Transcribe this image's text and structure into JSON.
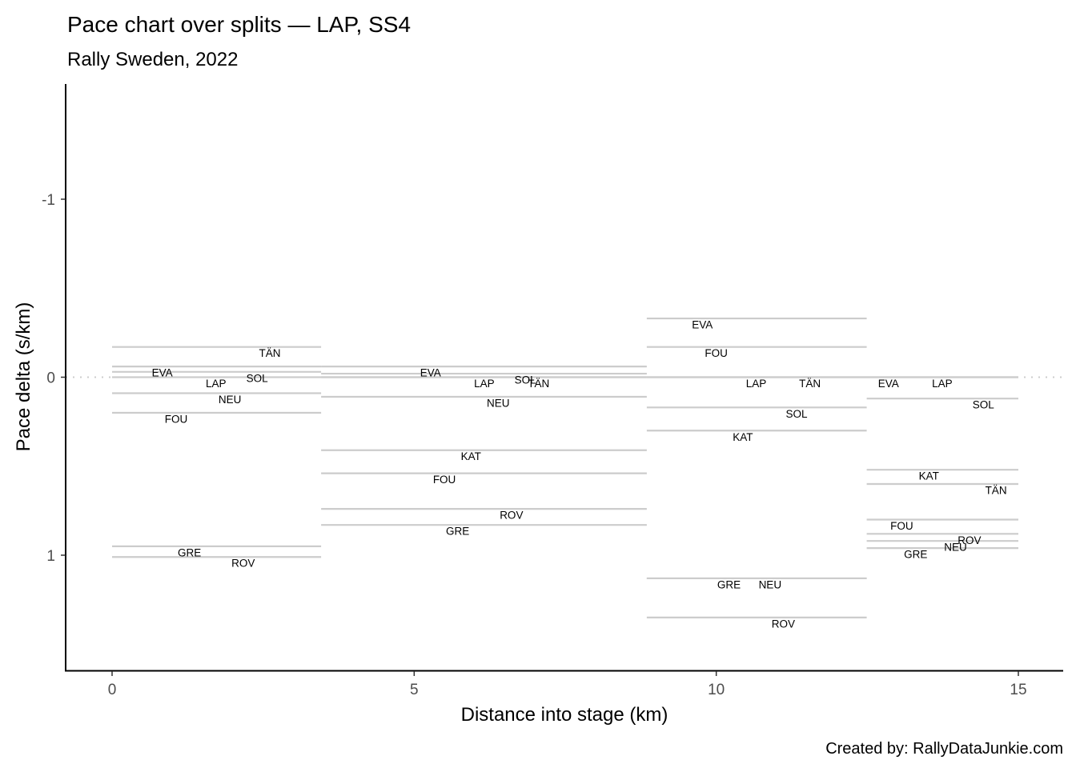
{
  "chart_data": {
    "type": "segment",
    "title": "Pace chart over splits — LAP, SS4",
    "subtitle": "Rally Sweden, 2022",
    "xlabel": "Distance into stage (km)",
    "ylabel": "Pace delta (s/km)",
    "caption": "Created by: RallyDataJunkie.com",
    "xlim": [
      0,
      15
    ],
    "ylim": [
      -1,
      1
    ],
    "y_reversed": true,
    "xticks": [
      0,
      5,
      10,
      15
    ],
    "xtick_labels": [
      "0",
      "5",
      "10",
      "15"
    ],
    "yticks": [
      -1,
      0,
      1
    ],
    "ytick_labels": [
      "-1",
      "0",
      "1"
    ],
    "reference_line": 0,
    "colors": {
      "segment": "#cccccc",
      "reference": "#cccccc",
      "text": "#000000"
    },
    "splits": [
      {
        "start": 0,
        "end": 3.46,
        "drivers": [
          {
            "code": "TÄN",
            "pace": -0.17,
            "label_x": 2.61
          },
          {
            "code": "EVA",
            "pace": -0.06,
            "label_x": 0.83
          },
          {
            "code": "SOL",
            "pace": -0.03,
            "label_x": 2.4
          },
          {
            "code": "LAP",
            "pace": 0.0,
            "label_x": 1.72
          },
          {
            "code": "NEU",
            "pace": 0.09,
            "label_x": 1.95
          },
          {
            "code": "FOU",
            "pace": 0.2,
            "label_x": 1.06
          },
          {
            "code": "GRE",
            "pace": 0.95,
            "label_x": 1.28
          },
          {
            "code": "ROV",
            "pace": 1.01,
            "label_x": 2.17
          }
        ]
      },
      {
        "start": 3.46,
        "end": 8.85,
        "drivers": [
          {
            "code": "EVA",
            "pace": -0.06,
            "label_x": 5.27
          },
          {
            "code": "SOL",
            "pace": -0.02,
            "label_x": 6.84
          },
          {
            "code": "LAP",
            "pace": 0.0,
            "label_x": 6.16
          },
          {
            "code": "TÄN",
            "pace": 0.0,
            "label_x": 7.06
          },
          {
            "code": "NEU",
            "pace": 0.11,
            "label_x": 6.39
          },
          {
            "code": "KAT",
            "pace": 0.41,
            "label_x": 5.94
          },
          {
            "code": "FOU",
            "pace": 0.54,
            "label_x": 5.5
          },
          {
            "code": "ROV",
            "pace": 0.74,
            "label_x": 6.61
          },
          {
            "code": "GRE",
            "pace": 0.83,
            "label_x": 5.72
          }
        ]
      },
      {
        "start": 8.85,
        "end": 12.49,
        "drivers": [
          {
            "code": "EVA",
            "pace": -0.33,
            "label_x": 9.77
          },
          {
            "code": "FOU",
            "pace": -0.17,
            "label_x": 10.0
          },
          {
            "code": "LAP",
            "pace": 0.0,
            "label_x": 10.66
          },
          {
            "code": "TÄN",
            "pace": 0.0,
            "label_x": 11.55
          },
          {
            "code": "SOL",
            "pace": 0.17,
            "label_x": 11.33
          },
          {
            "code": "KAT",
            "pace": 0.3,
            "label_x": 10.44
          },
          {
            "code": "GRE",
            "pace": 1.13,
            "label_x": 10.21
          },
          {
            "code": "NEU",
            "pace": 1.13,
            "label_x": 10.89
          },
          {
            "code": "ROV",
            "pace": 1.35,
            "label_x": 11.11
          }
        ]
      },
      {
        "start": 12.49,
        "end": 15.0,
        "drivers": [
          {
            "code": "EVA",
            "pace": 0.0,
            "label_x": 12.85
          },
          {
            "code": "LAP",
            "pace": 0.0,
            "label_x": 13.74
          },
          {
            "code": "SOL",
            "pace": 0.12,
            "label_x": 14.42
          },
          {
            "code": "KAT",
            "pace": 0.52,
            "label_x": 13.52
          },
          {
            "code": "TÄN",
            "pace": 0.6,
            "label_x": 14.63
          },
          {
            "code": "FOU",
            "pace": 0.8,
            "label_x": 13.07
          },
          {
            "code": "ROV",
            "pace": 0.88,
            "label_x": 14.19
          },
          {
            "code": "NEU",
            "pace": 0.92,
            "label_x": 13.96
          },
          {
            "code": "GRE",
            "pace": 0.96,
            "label_x": 13.3
          }
        ]
      }
    ]
  }
}
